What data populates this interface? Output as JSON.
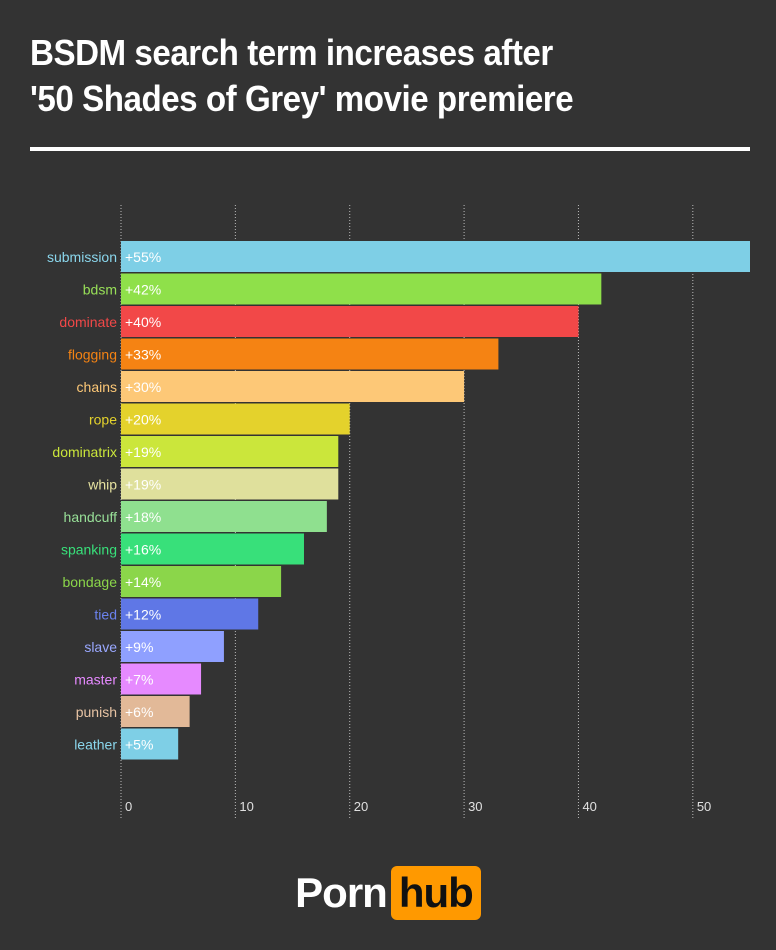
{
  "header": {
    "title_line1": "BSDM search term increases after",
    "title_line2": "'50 Shades of Grey' movie premiere"
  },
  "logo": {
    "part1": "Porn",
    "part2": "hub",
    "accent": "#ff9900"
  },
  "chart_data": {
    "type": "bar",
    "orientation": "horizontal",
    "title": "",
    "xlabel": "",
    "ylabel": "",
    "xlim": [
      0,
      55
    ],
    "xticks": [
      0,
      10,
      20,
      30,
      40,
      50
    ],
    "grid": true,
    "grid_style": "dotted",
    "categories": [
      "submission",
      "bdsm",
      "dominate",
      "flogging",
      "chains",
      "rope",
      "dominatrix",
      "whip",
      "handcuff",
      "spanking",
      "bondage",
      "tied",
      "slave",
      "master",
      "punish",
      "leather"
    ],
    "values": [
      55,
      42,
      40,
      33,
      30,
      20,
      19,
      19,
      18,
      16,
      14,
      12,
      9,
      7,
      6,
      5
    ],
    "data_labels": [
      "+55%",
      "+42%",
      "+40%",
      "+33%",
      "+30%",
      "+20%",
      "+19%",
      "+19%",
      "+18%",
      "+16%",
      "+14%",
      "+12%",
      "+9%",
      "+7%",
      "+6%",
      "+5%"
    ],
    "colors": [
      "#7ecfe6",
      "#8fe04a",
      "#f24848",
      "#f58313",
      "#fdc877",
      "#e4d22c",
      "#cbe63b",
      "#dfe09c",
      "#8fe08f",
      "#38e07a",
      "#8bd64a",
      "#5f77e6",
      "#8fa0ff",
      "#e68aff",
      "#e2b998",
      "#7ecfe6"
    ],
    "label_colors": [
      "#8ad6ec",
      "#98e058",
      "#f24848",
      "#f58313",
      "#fdc877",
      "#e4d22c",
      "#cbe63b",
      "#e6e2a0",
      "#98e098",
      "#38e07a",
      "#8bd64a",
      "#6b82ee",
      "#9aa8ff",
      "#e68aff",
      "#e8c4a4",
      "#8ad6ec"
    ]
  }
}
